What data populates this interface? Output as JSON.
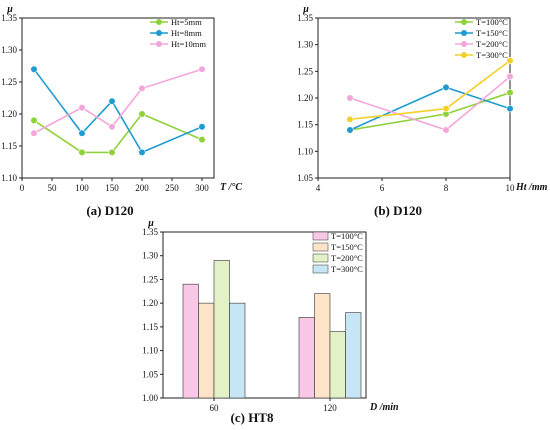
{
  "chart_data": [
    {
      "type": "line",
      "caption": "(a) D120",
      "ylabel": "μ",
      "xlabel": "T /°C",
      "xlim": [
        0,
        320
      ],
      "ylim": [
        1.1,
        1.35
      ],
      "xticks": [
        "0",
        "50",
        "100",
        "150",
        "200",
        "250",
        "300"
      ],
      "yticks": [
        "1.10",
        "1.15",
        "1.20",
        "1.25",
        "1.30",
        "1.35"
      ],
      "legend_position": "top-right",
      "x": [
        20,
        100,
        150,
        200,
        300
      ],
      "series": [
        {
          "name": "Ht=5mm",
          "color": "#8fd13a",
          "values": [
            1.19,
            1.14,
            1.14,
            1.2,
            1.16
          ]
        },
        {
          "name": "Ht=8mm",
          "color": "#1e9bd1",
          "values": [
            1.27,
            1.17,
            1.22,
            1.14,
            1.18
          ]
        },
        {
          "name": "Ht=10mm",
          "color": "#f2a6d9",
          "values": [
            1.17,
            1.21,
            1.18,
            1.24,
            1.27
          ]
        }
      ]
    },
    {
      "type": "line",
      "caption": "(b) D120",
      "ylabel": "μ",
      "xlabel": "Ht /mm",
      "xlim": [
        4,
        10
      ],
      "ylim": [
        1.05,
        1.35
      ],
      "xticks": [
        "4",
        "6",
        "8",
        "10"
      ],
      "yticks": [
        "1.05",
        "1.10",
        "1.15",
        "1.20",
        "1.25",
        "1.30",
        "1.35"
      ],
      "legend_position": "top-right",
      "x": [
        5,
        8,
        10
      ],
      "series": [
        {
          "name": "T=100°C",
          "color": "#8fd13a",
          "values": [
            1.14,
            1.17,
            1.21
          ]
        },
        {
          "name": "T=150°C",
          "color": "#1e9bd1",
          "values": [
            1.14,
            1.22,
            1.18
          ]
        },
        {
          "name": "T=200°C",
          "color": "#f2a6d9",
          "values": [
            1.2,
            1.14,
            1.24
          ]
        },
        {
          "name": "T=300°C",
          "color": "#f2d02a",
          "values": [
            1.16,
            1.18,
            1.27
          ]
        }
      ]
    },
    {
      "type": "bar",
      "caption": "(c) HT8",
      "ylabel": "μ",
      "xlabel": "D /min",
      "ylim": [
        1.0,
        1.35
      ],
      "yticks": [
        "1.00",
        "1.05",
        "1.10",
        "1.15",
        "1.20",
        "1.25",
        "1.30",
        "1.35"
      ],
      "categories": [
        "60",
        "120"
      ],
      "legend_position": "top-right",
      "series": [
        {
          "name": "T=100°C",
          "color": "#f9c8e6",
          "values": [
            1.24,
            1.17
          ]
        },
        {
          "name": "T=150°C",
          "color": "#fde3c8",
          "values": [
            1.2,
            1.22
          ]
        },
        {
          "name": "T=200°C",
          "color": "#e3f2c6",
          "values": [
            1.29,
            1.14
          ]
        },
        {
          "name": "T=300°C",
          "color": "#c6e6f6",
          "values": [
            1.2,
            1.18
          ]
        }
      ]
    }
  ]
}
